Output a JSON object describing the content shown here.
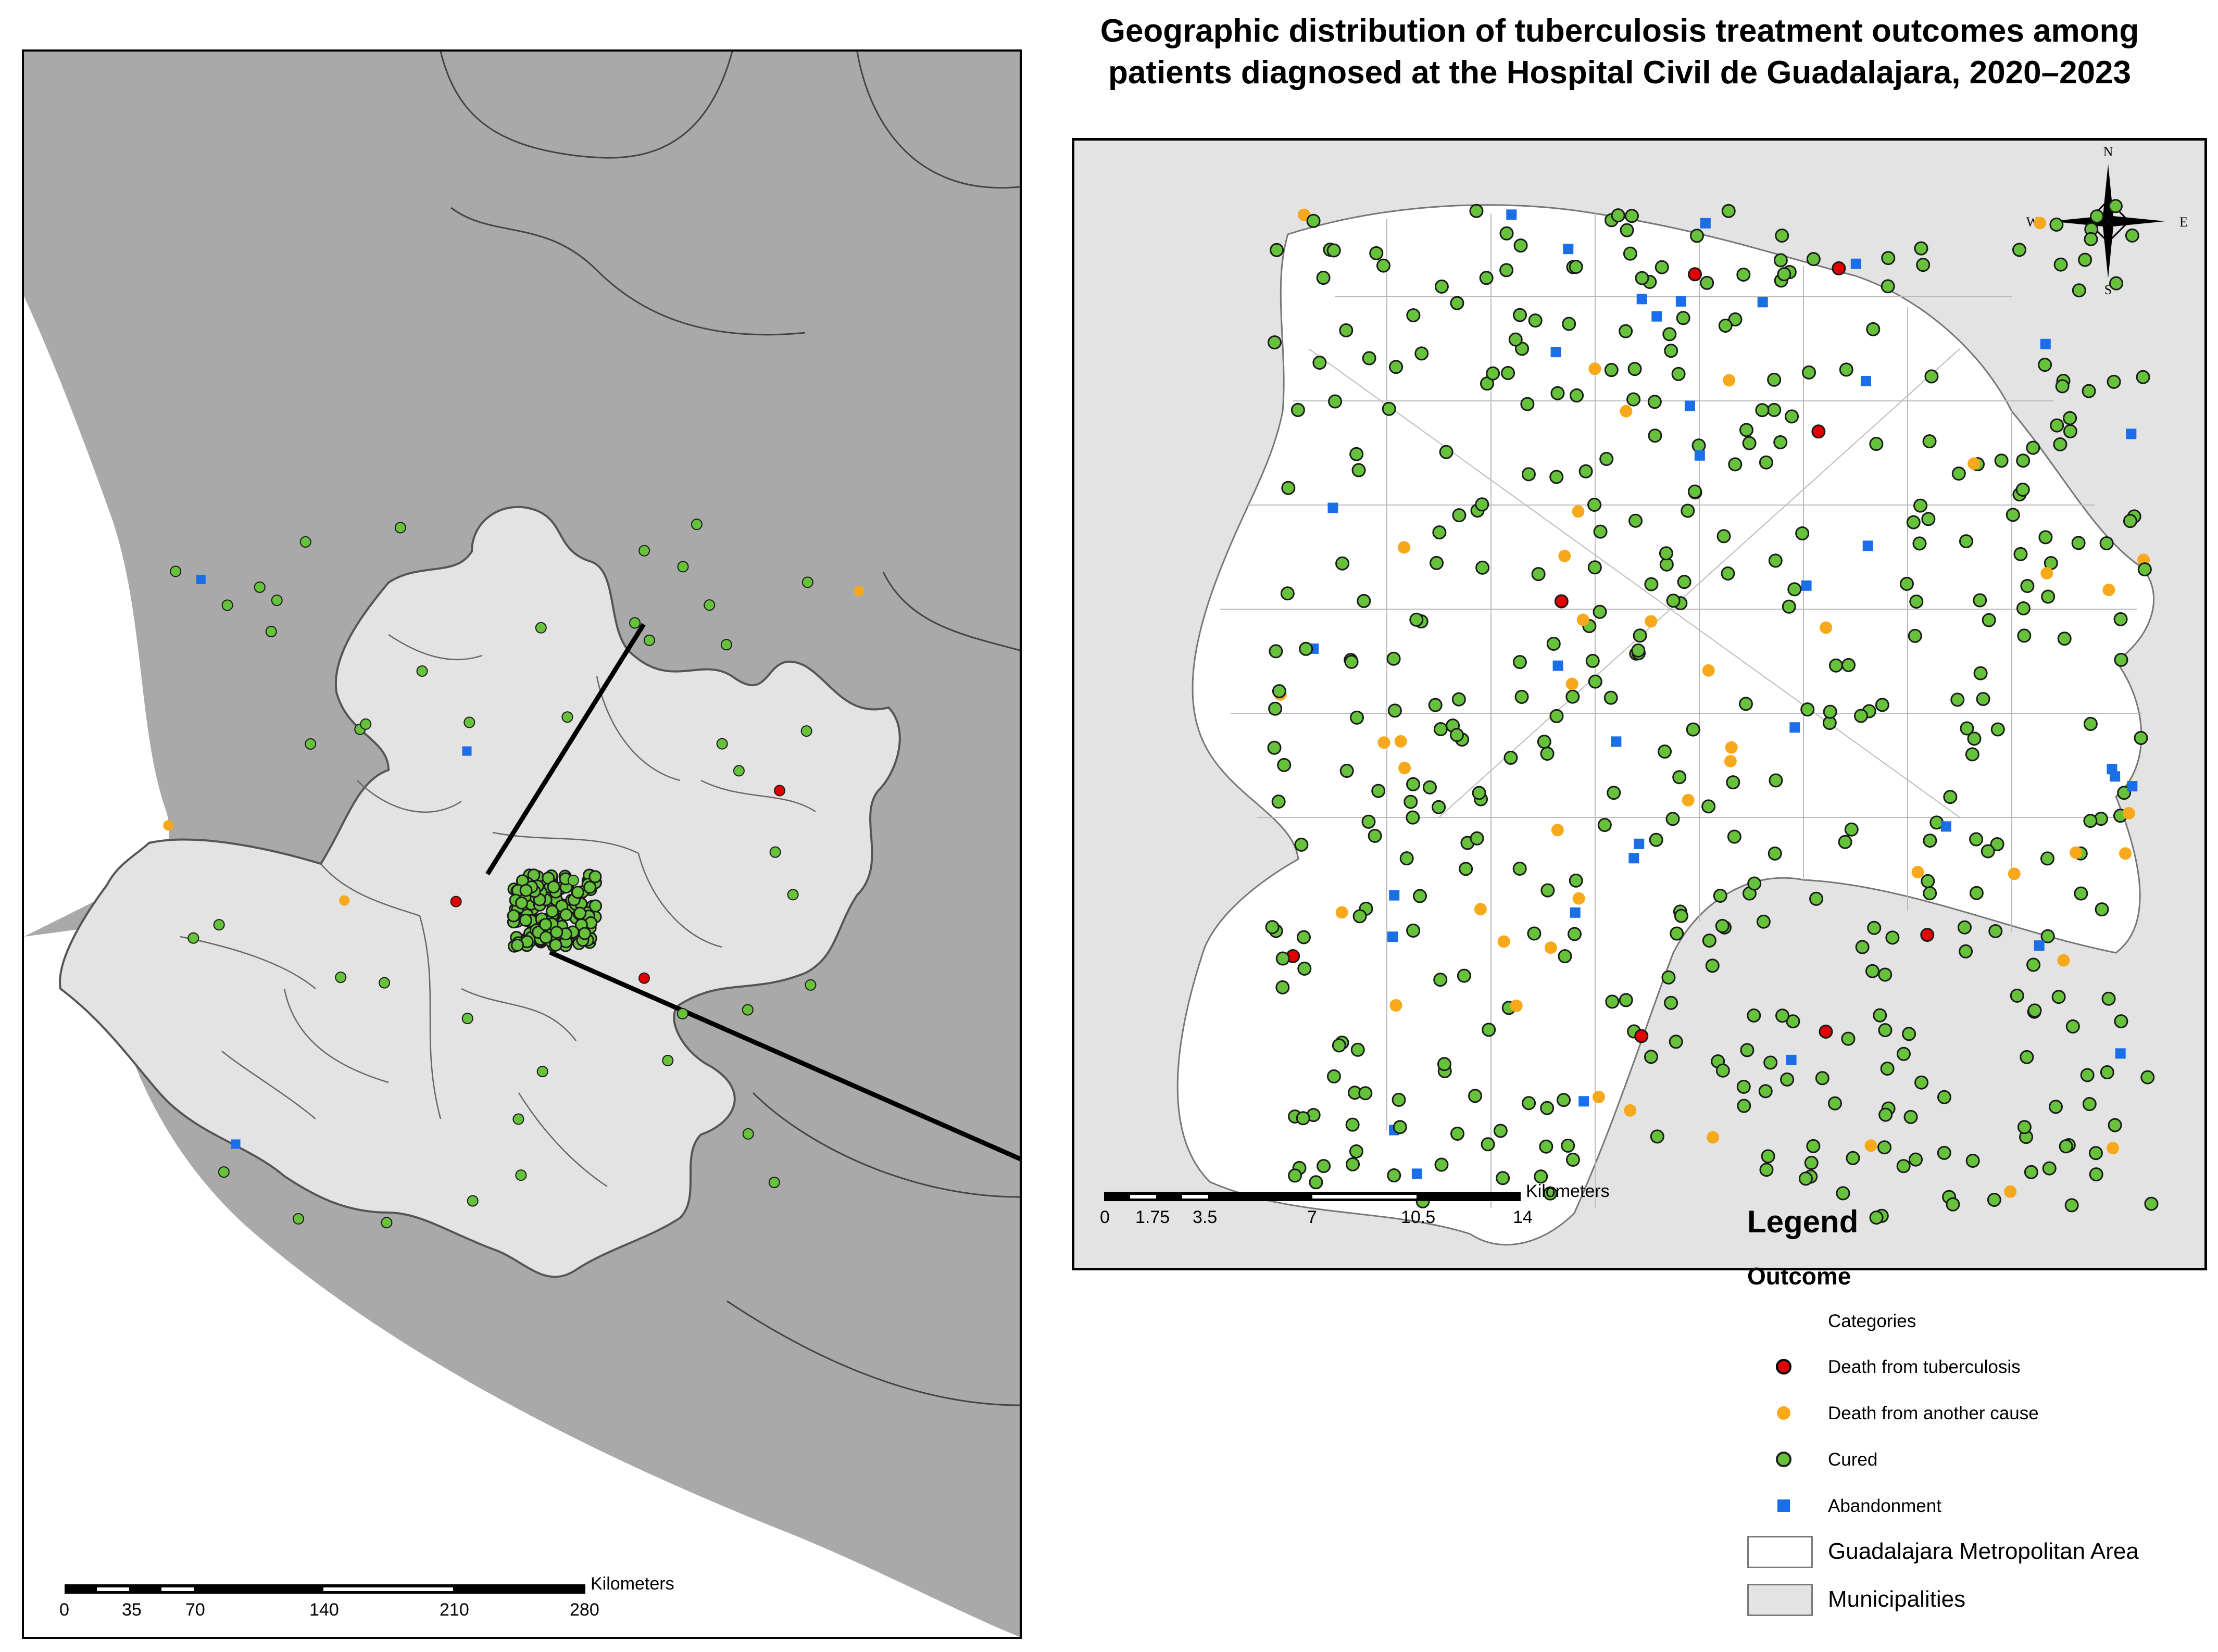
{
  "title_line1": "Geographic distribution of tuberculosis treatment outcomes among",
  "title_line2": "patients diagnosed at the Hospital Civil de Guadalajara, 2020–2023",
  "colors": {
    "sea_land": "#a9a9a9",
    "municipalities_fill": "#e3e3e3",
    "metro_fill": "#ffffff",
    "death_tb": "#e00000",
    "death_other": "#f7a81b",
    "cured": "#66c23a",
    "abandonment": "#1a6fe8"
  },
  "state_scalebar": {
    "unit": "Kilometers",
    "ticks": [
      "0",
      "35",
      "70",
      "140",
      "210",
      "280"
    ]
  },
  "inset_scalebar": {
    "unit": "Kilometers",
    "ticks": [
      "0",
      "1.75",
      "3.5",
      "7",
      "10.5",
      "14"
    ]
  },
  "compass": {
    "n": "N",
    "s": "S",
    "e": "E",
    "w": "W"
  },
  "legend": {
    "title": "Legend",
    "field": "Outcome",
    "categories_label": "Categories",
    "items": [
      {
        "label": "Death from tuberculosis",
        "symbol": "red-circle-icon"
      },
      {
        "label": "Death from another cause",
        "symbol": "orange-circle-icon"
      },
      {
        "label": "Cured",
        "symbol": "green-circle-icon"
      },
      {
        "label": "Abandonment",
        "symbol": "blue-square-icon"
      }
    ],
    "areas": [
      {
        "label": "Guadalajara Metropolitan Area",
        "symbol": "white-box-icon"
      },
      {
        "label": "Municipalities",
        "symbol": "grey-box-icon"
      }
    ]
  }
}
